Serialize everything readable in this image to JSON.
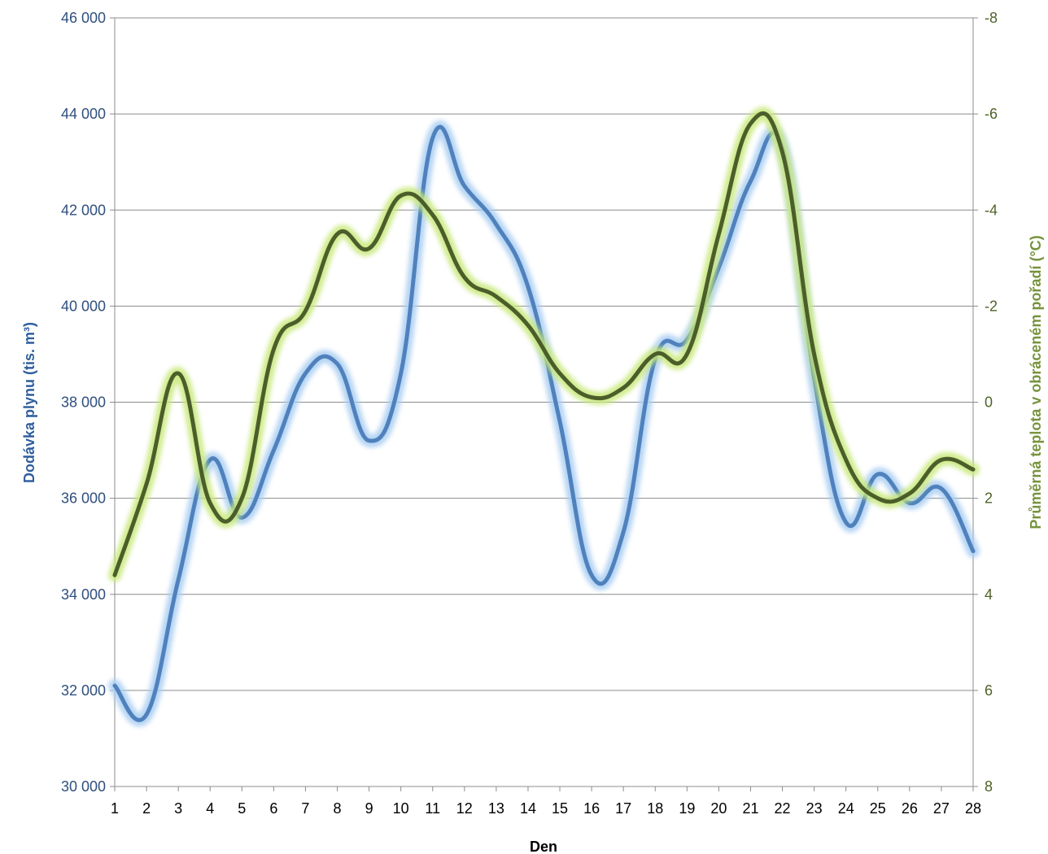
{
  "chart_data": {
    "type": "line",
    "xlabel": "Den",
    "ylabel_left": "Dodávka plynu (tis. m³)",
    "ylabel_right": "Průměrná teplota v obráceném pořadí (°C)",
    "x": [
      1,
      2,
      3,
      4,
      5,
      6,
      7,
      8,
      9,
      10,
      11,
      12,
      13,
      14,
      15,
      16,
      17,
      18,
      19,
      20,
      21,
      22,
      23,
      24,
      25,
      26,
      27,
      28
    ],
    "y_left_lim": [
      30000,
      46000
    ],
    "y_left_ticks": [
      30000,
      32000,
      34000,
      36000,
      38000,
      40000,
      42000,
      44000,
      46000
    ],
    "y_left_tick_labels": [
      "30 000",
      "32 000",
      "34 000",
      "36 000",
      "38 000",
      "40 000",
      "42 000",
      "44 000",
      "46 000"
    ],
    "y_right_lim": [
      8,
      -8
    ],
    "y_right_inverted": true,
    "y_right_ticks": [
      8,
      6,
      4,
      2,
      0,
      -2,
      -4,
      -6,
      -8
    ],
    "y_right_tick_labels": [
      "8",
      "6",
      "4",
      "2",
      "0",
      "-2",
      "-4",
      "-6",
      "-8"
    ],
    "grid": "horizontal",
    "legend": "none",
    "series": [
      {
        "axis": "left",
        "color": "#4F81BD",
        "glow": "#A9CDF2",
        "values": [
          32100,
          31500,
          34300,
          36800,
          35600,
          37000,
          38600,
          38800,
          37200,
          38600,
          43500,
          42500,
          41700,
          40400,
          37600,
          34400,
          35300,
          38900,
          39300,
          40800,
          42600,
          43300,
          38500,
          35500,
          36500,
          35900,
          36200,
          34900
        ]
      },
      {
        "axis": "right",
        "color": "#4B5E2A",
        "glow": "#C8E87A",
        "values": [
          3.6,
          1.7,
          -0.6,
          2.1,
          2.0,
          -1.1,
          -1.9,
          -3.5,
          -3.2,
          -4.3,
          -3.9,
          -2.6,
          -2.2,
          -1.6,
          -0.6,
          -0.1,
          -0.3,
          -1.0,
          -1.0,
          -3.5,
          -5.8,
          -5.2,
          -1.0,
          1.2,
          2.0,
          1.9,
          1.2,
          1.4
        ]
      }
    ]
  }
}
